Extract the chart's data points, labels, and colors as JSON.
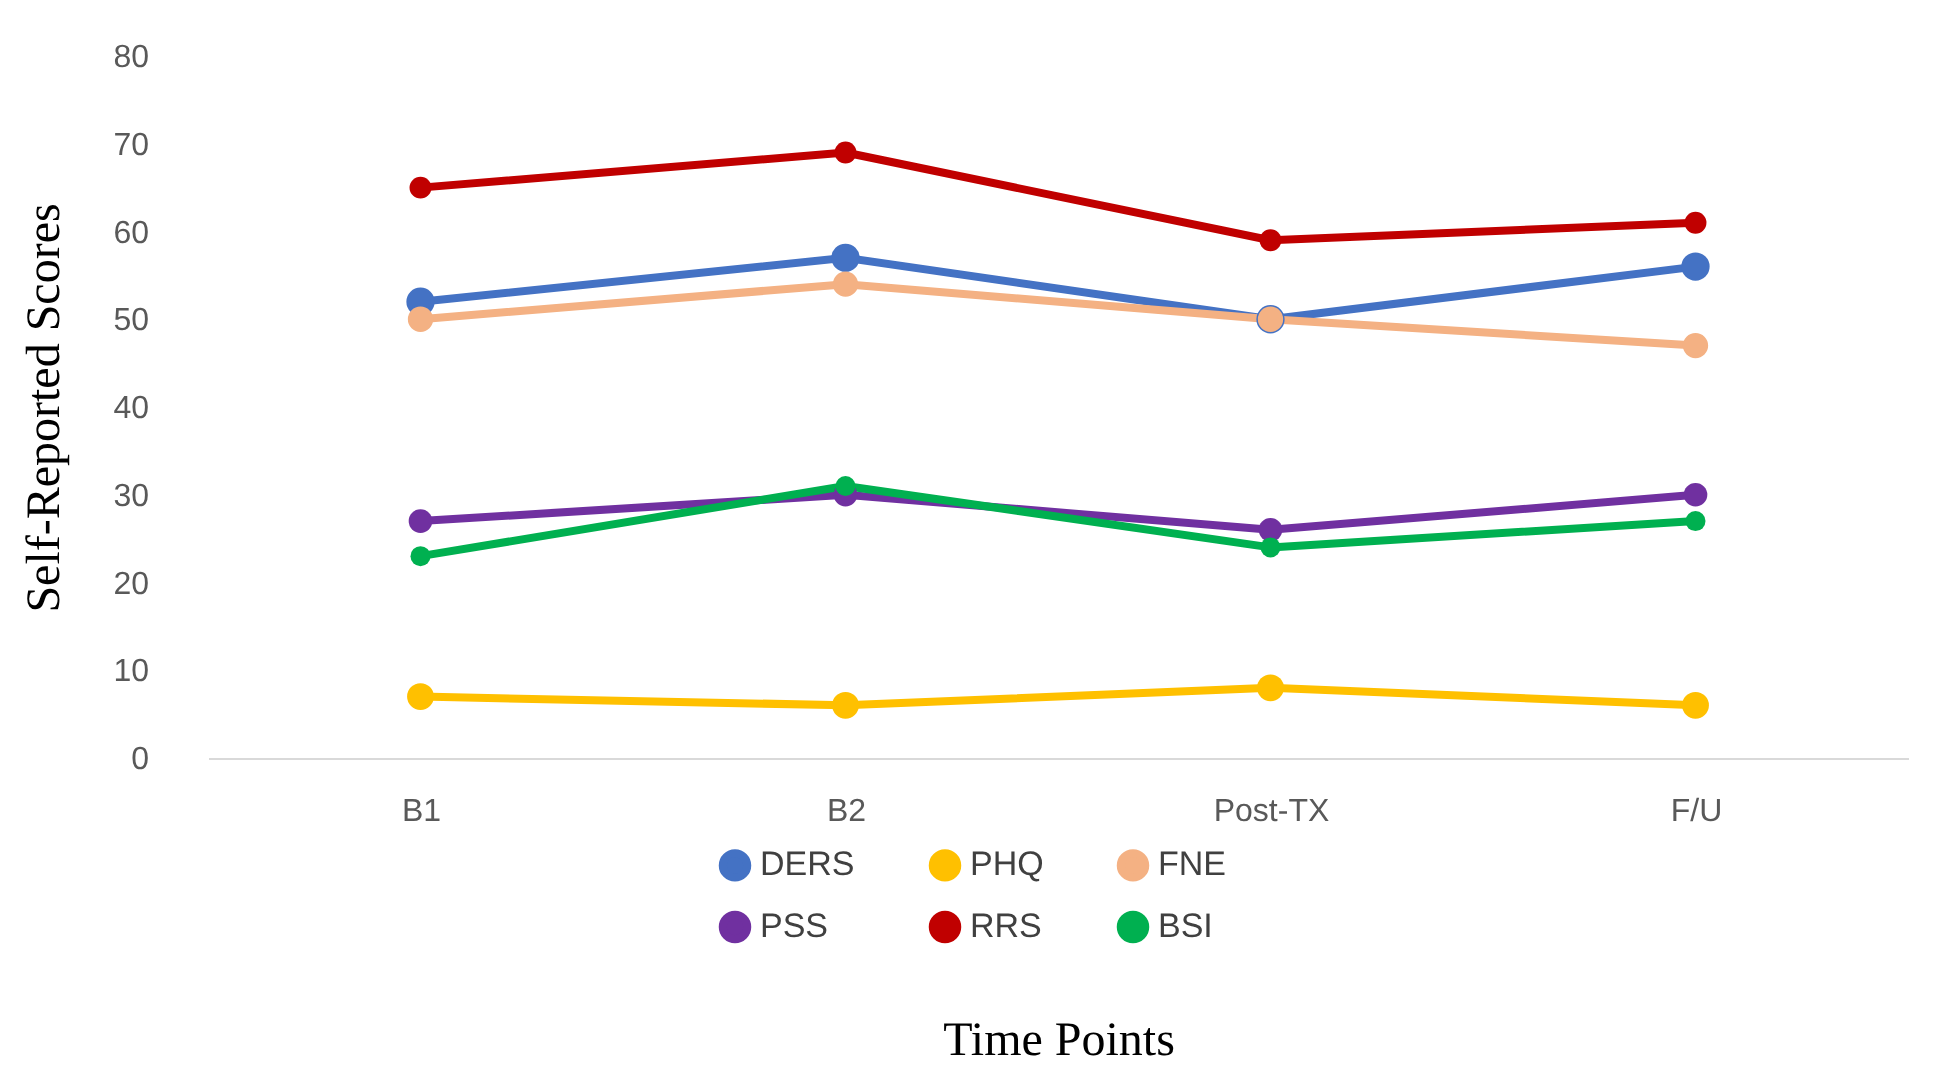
{
  "chart_data": {
    "type": "line",
    "xlabel": "Time Points",
    "ylabel": "Self-Reported Scores",
    "categories": [
      "B1",
      "B2",
      "Post-TX",
      "F/U"
    ],
    "series": [
      {
        "name": "DERS",
        "color": "#4472c4",
        "values": [
          52,
          57,
          50,
          56
        ]
      },
      {
        "name": "PHQ",
        "color": "#ffc000",
        "values": [
          7,
          6,
          8,
          6
        ]
      },
      {
        "name": "FNE",
        "color": "#f4b183",
        "values": [
          50,
          54,
          50,
          47
        ]
      },
      {
        "name": "PSS",
        "color": "#7030a0",
        "values": [
          27,
          30,
          26,
          30
        ]
      },
      {
        "name": "RRS",
        "color": "#c00000",
        "values": [
          65,
          69,
          59,
          61
        ]
      },
      {
        "name": "BSI",
        "color": "#00b050",
        "values": [
          23,
          31,
          24,
          27
        ]
      }
    ],
    "ylim": [
      0,
      80
    ],
    "yticks": [
      0,
      10,
      20,
      30,
      40,
      50,
      60,
      70,
      80
    ],
    "grid": false,
    "legend": "bottom",
    "marker": "circle",
    "line_style": "solid"
  }
}
